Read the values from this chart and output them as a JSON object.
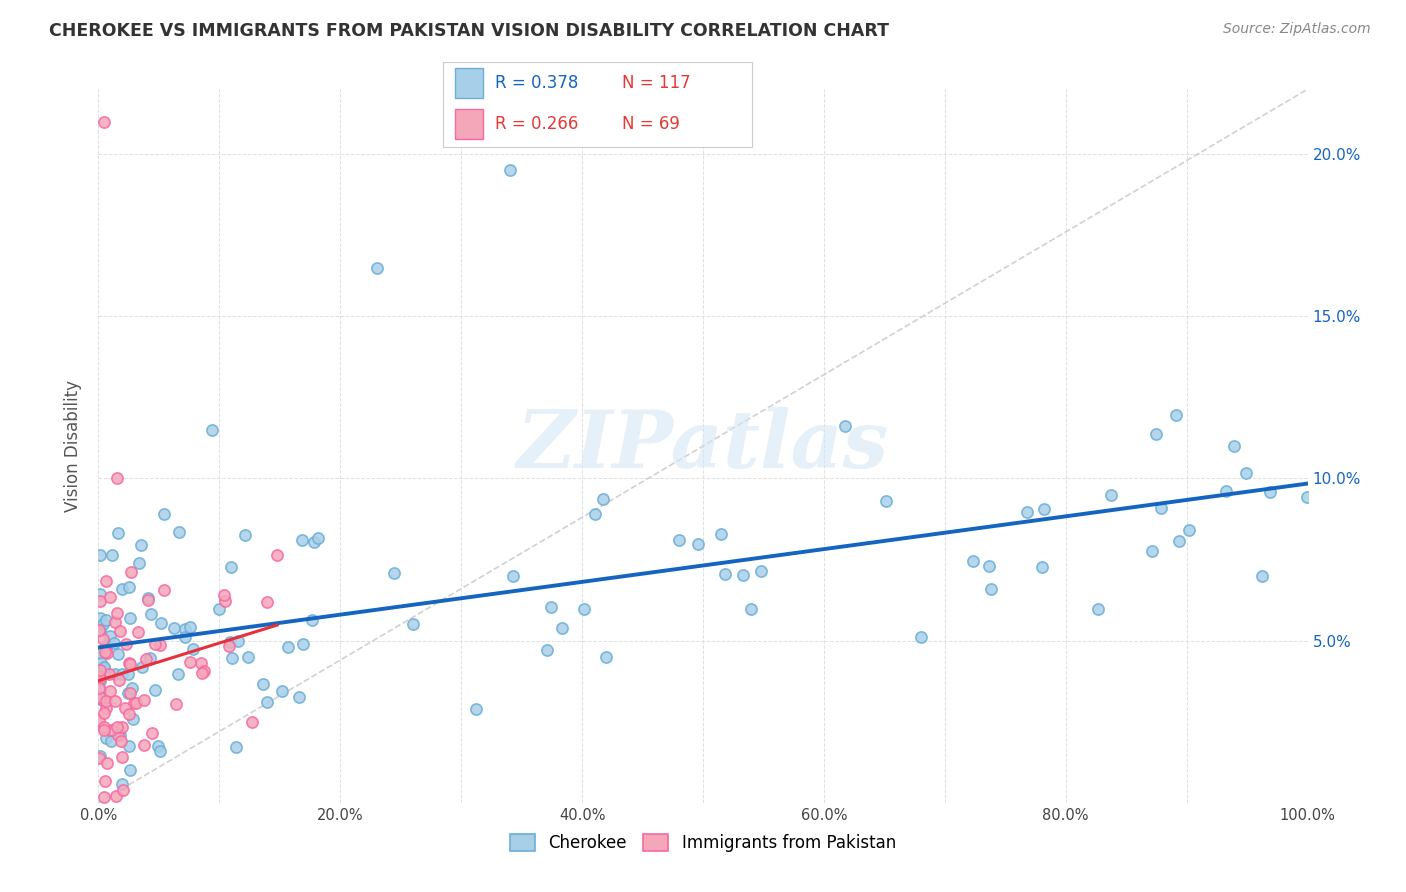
{
  "title": "CHEROKEE VS IMMIGRANTS FROM PAKISTAN VISION DISABILITY CORRELATION CHART",
  "source": "Source: ZipAtlas.com",
  "ylabel": "Vision Disability",
  "xlim": [
    0.0,
    1.0
  ],
  "ylim": [
    0.0,
    0.22
  ],
  "xtick_labels": [
    "0.0%",
    "",
    "20.0%",
    "",
    "40.0%",
    "",
    "60.0%",
    "",
    "80.0%",
    "",
    "100.0%"
  ],
  "xtick_positions": [
    0.0,
    0.1,
    0.2,
    0.3,
    0.4,
    0.5,
    0.6,
    0.7,
    0.8,
    0.9,
    1.0
  ],
  "ytick_labels": [
    "5.0%",
    "10.0%",
    "15.0%",
    "20.0%"
  ],
  "ytick_positions": [
    0.05,
    0.1,
    0.15,
    0.2
  ],
  "legend_r_cherokee": "R = 0.378",
  "legend_n_cherokee": "N = 117",
  "legend_r_pakistan": "R = 0.266",
  "legend_n_pakistan": "N = 69",
  "cherokee_color": "#a8cfe8",
  "pakistan_color": "#f4a7b9",
  "cherokee_edge": "#6baed6",
  "pakistan_edge": "#f768a1",
  "trendline_cherokee_color": "#1565c0",
  "trendline_pakistan_color": "#e8303a",
  "diagonal_color": "#cccccc",
  "background_color": "#ffffff",
  "watermark": "ZIPatlas",
  "grid_color": "#e0e0e0",
  "legend_r_ck_color": "#1565c0",
  "legend_n_ck_color": "#e53935",
  "legend_r_pk_color": "#e53935",
  "legend_n_pk_color": "#e53935",
  "title_color": "#333333",
  "source_color": "#888888",
  "ylabel_color": "#555555",
  "ytick_color": "#1565c0"
}
